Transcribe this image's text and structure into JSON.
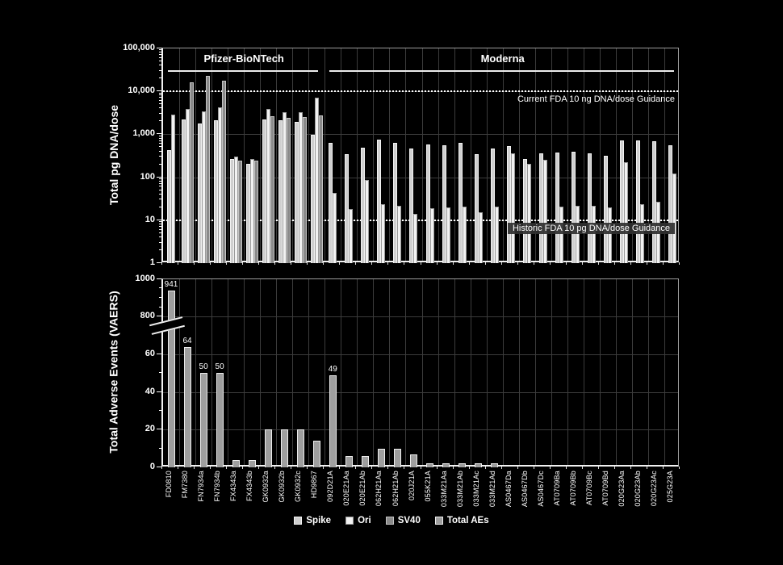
{
  "figure": {
    "background": "#000000",
    "top_panel_title": "Total pg DNA/dose",
    "bottom_panel_title": "Total Adverse Events (VAERS)"
  },
  "legend": {
    "items": [
      {
        "label": "Spike",
        "fill": "#cfcfcf",
        "edge": "#f2f2f2"
      },
      {
        "label": "Ori",
        "fill": "#f2f2f2",
        "edge": "#9a9a9a"
      },
      {
        "label": "SV40",
        "fill": "#8a8a8a",
        "edge": "#c4c4c4"
      },
      {
        "label": "Total AEs",
        "fill": "#9e9e9e",
        "edge": "#ededed"
      }
    ]
  },
  "chart_data": [
    {
      "type": "bar",
      "panel": "top",
      "ylabel": "Total pg DNA/dose",
      "yscale": "log",
      "ylim": [
        1,
        100000
      ],
      "ytick_labels": [
        "1",
        "10",
        "100",
        "1,000",
        "10,000",
        "100,000"
      ],
      "grid": true,
      "group_headers": [
        {
          "label": "Pfizer-BioNTech",
          "start": 0,
          "end": 9
        },
        {
          "label": "Moderna",
          "start": 10,
          "end": 31
        }
      ],
      "guidance_lines": [
        {
          "value": 10000,
          "text": "Current FDA 10 ng DNA/dose Guidance",
          "boxed": false
        },
        {
          "value": 10,
          "text": "Historic FDA 10 pg DNA/dose Guidance",
          "boxed": true
        }
      ],
      "categories": [
        "FD0810",
        "FM7380",
        "FN7934a",
        "FN7934b",
        "FX4343a",
        "FX4343b",
        "GK0932a",
        "GK0932b",
        "GK0932c",
        "HD9867",
        "092D21A",
        "020E21Aa",
        "020E21Ab",
        "062H21Aa",
        "062H21Ab",
        "020J21A",
        "055K21A",
        "033M21Aa",
        "033M21Ab",
        "033M21Ac",
        "033M21Ad",
        "AS0467Da",
        "AS0467Db",
        "AS0467Dc",
        "AT0709Ba",
        "AT0709Bb",
        "AT0709Bc",
        "AT0709Bd",
        "020G23Aa",
        "020G23Ab",
        "020G23Ac",
        "025G23A"
      ],
      "series": [
        {
          "name": "Spike",
          "values": [
            430,
            2250,
            1800,
            2150,
            270,
            210,
            2250,
            2100,
            1950,
            980,
            630,
            345,
            490,
            760,
            640,
            460,
            570,
            550,
            630,
            345,
            465,
            530,
            265,
            365,
            380,
            400,
            360,
            320,
            710,
            730,
            700,
            550
          ]
        },
        {
          "name": "Ori",
          "values": [
            2880,
            3900,
            3400,
            4300,
            310,
            270,
            3850,
            3250,
            3300,
            7200,
            43,
            18,
            87,
            24,
            22,
            14,
            19,
            20,
            21,
            15,
            21,
            355,
            205,
            255,
            21,
            22,
            22,
            20,
            225,
            24,
            27,
            120
          ]
        },
        {
          "name": "SV40",
          "values": [
            null,
            16500,
            23500,
            18000,
            240,
            245,
            2700,
            2400,
            2500,
            2800,
            null,
            null,
            null,
            null,
            null,
            null,
            null,
            null,
            null,
            null,
            null,
            null,
            null,
            null,
            null,
            null,
            null,
            null,
            null,
            null,
            null,
            null
          ]
        }
      ]
    },
    {
      "type": "bar",
      "panel": "bottom",
      "ylabel": "Total Adverse Events (VAERS)",
      "yscale": "broken-linear",
      "yticks": [
        0,
        20,
        40,
        60,
        800,
        1000
      ],
      "axis_break_between": [
        70,
        800
      ],
      "grid": true,
      "categories": [
        "FD0810",
        "FM7380",
        "FN7934a",
        "FN7934b",
        "FX4343a",
        "FX4343b",
        "GK0932a",
        "GK0932b",
        "GK0932c",
        "HD9867",
        "092D21A",
        "020E21Aa",
        "020E21Ab",
        "062H21Aa",
        "062H21Ab",
        "020J21A",
        "055K21A",
        "033M21Aa",
        "033M21Ab",
        "033M21Ac",
        "033M21Ad",
        "AS0467Da",
        "AS0467Db",
        "AS0467Dc",
        "AT0709Ba",
        "AT0709Bb",
        "AT0709Bc",
        "AT0709Bd",
        "020G23Aa",
        "020G23Ab",
        "020G23Ac",
        "025G23A"
      ],
      "series": [
        {
          "name": "Total AEs",
          "values": [
            941,
            64,
            50,
            50,
            4,
            4,
            20,
            20,
            20,
            14,
            49,
            6,
            6,
            10,
            10,
            7,
            2,
            2,
            2,
            2,
            2,
            0,
            0,
            0,
            0,
            0,
            0,
            0,
            0,
            0,
            0,
            0
          ]
        }
      ],
      "bar_labels": {
        "0": "941",
        "1": "64",
        "2": "50",
        "3": "50",
        "10": "49"
      }
    }
  ],
  "series_colors": {
    "Spike": {
      "fill": "#cfcfcf",
      "edge": "#f2f2f2"
    },
    "Ori": {
      "fill": "#f2f2f2",
      "edge": "#9a9a9a"
    },
    "SV40": {
      "fill": "#8a8a8a",
      "edge": "#c4c4c4"
    },
    "Total AEs": {
      "fill": "#9e9e9e",
      "edge": "#ededed"
    }
  }
}
